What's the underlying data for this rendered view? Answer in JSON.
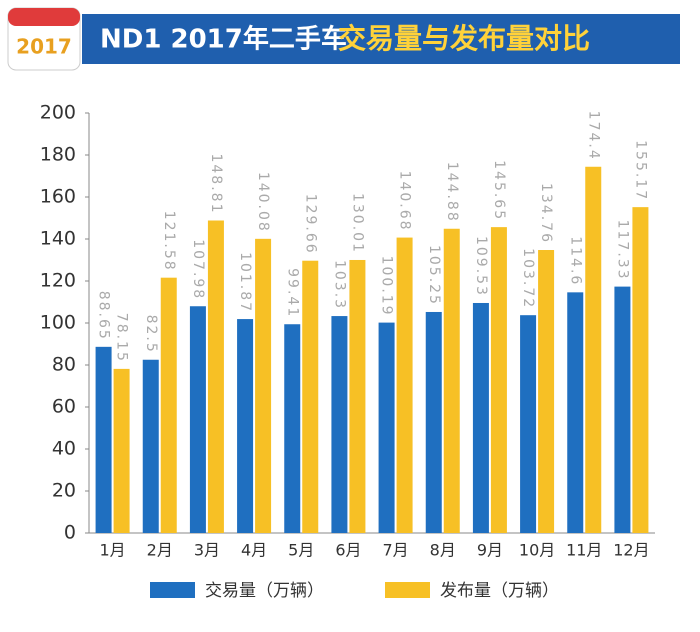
{
  "chart_data": {
    "type": "bar",
    "badge": "2017",
    "title": "ND1 2017年二手车",
    "title_emphasis": "交易量与发布量对比",
    "categories": [
      "1月",
      "2月",
      "3月",
      "4月",
      "5月",
      "6月",
      "7月",
      "8月",
      "9月",
      "10月",
      "11月",
      "12月"
    ],
    "series": [
      {
        "name": "交易量（万辆）",
        "color": "#1f6fc0",
        "values": [
          88.65,
          82.5,
          107.98,
          101.87,
          99.41,
          103.3,
          100.19,
          105.25,
          109.53,
          103.72,
          114.6,
          117.33
        ]
      },
      {
        "name": "发布量（万辆）",
        "color": "#f7c025",
        "values": [
          78.15,
          121.58,
          148.81,
          140.08,
          129.66,
          130.01,
          140.68,
          144.88,
          145.65,
          134.76,
          174.4,
          155.17
        ]
      }
    ],
    "ylim": [
      0,
      200
    ],
    "yticks": [
      0,
      20,
      40,
      60,
      80,
      100,
      120,
      140,
      160,
      180,
      200
    ]
  }
}
